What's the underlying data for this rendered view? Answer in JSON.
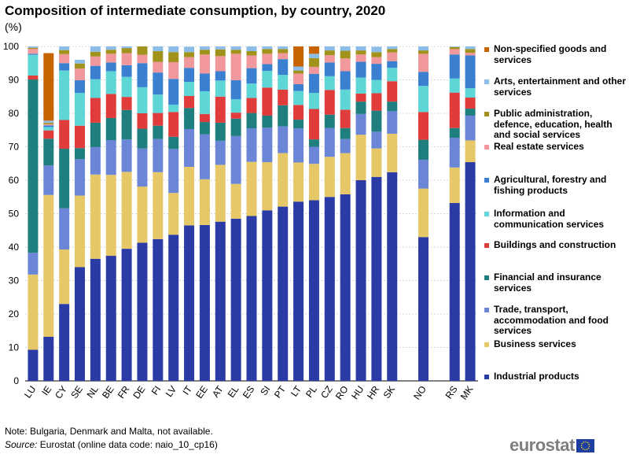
{
  "title": "Composition of intermediate consumption, by country, 2020",
  "unit": "(%)",
  "note": "Note: Bulgaria, Denmark and Malta, not available.",
  "source_label": "Source:",
  "source_text": " Eurostat (online data code: naio_10_cp16)",
  "logo_text": "eurostat",
  "chart_data": {
    "type": "bar",
    "stacked": true,
    "title": "Composition of intermediate consumption, by country, 2020",
    "ylabel": "(%)",
    "ylim": [
      0,
      100
    ],
    "yticks": [
      0,
      10,
      20,
      30,
      40,
      50,
      60,
      70,
      80,
      90,
      100
    ],
    "categories": [
      "LU",
      "IE",
      "CY",
      "SE",
      "NL",
      "BE",
      "FR",
      "DE",
      "FI",
      "LV",
      "IT",
      "EE",
      "AT",
      "EL",
      "ES",
      "SI",
      "PT",
      "LT",
      "PL",
      "CZ",
      "RO",
      "HU",
      "HR",
      "SK",
      "",
      "NO",
      "",
      "RS",
      "MK"
    ],
    "series": [
      {
        "name": "Industrial products",
        "color": "#2a3ba6",
        "values": [
          9.3,
          13.2,
          23.0,
          34.0,
          36.5,
          37.4,
          39.5,
          41.3,
          42.4,
          43.7,
          46.5,
          46.6,
          47.6,
          48.5,
          49.3,
          51.0,
          52.1,
          53.6,
          54.0,
          55.0,
          55.8,
          60.0,
          61.0,
          62.4,
          null,
          43.0,
          null,
          53.2,
          65.4
        ]
      },
      {
        "name": "Business services",
        "color": "#e6c868",
        "values": [
          22.5,
          42.4,
          16.3,
          21.4,
          25.2,
          24.2,
          23.0,
          16.8,
          20.0,
          12.5,
          17.5,
          13.7,
          17.0,
          10.4,
          16.2,
          14.4,
          16.0,
          11.7,
          10.9,
          12.0,
          12.3,
          13.6,
          8.5,
          11.5,
          null,
          14.5,
          null,
          10.6,
          6.5
        ]
      },
      {
        "name": "Trade, transport, accommodation and food services",
        "color": "#6b86d6",
        "values": [
          6.5,
          8.8,
          12.3,
          10.9,
          8.2,
          10.4,
          9.7,
          11.4,
          9.9,
          13.2,
          11.3,
          13.4,
          7.2,
          14.3,
          10.0,
          10.3,
          8.0,
          10.2,
          5.1,
          8.6,
          4.2,
          6.2,
          5.0,
          6.8,
          null,
          8.6,
          null,
          8.9,
          7.4
        ]
      },
      {
        "name": "Financial and insurance services",
        "color": "#1f7e7e",
        "values": [
          51.8,
          8.0,
          17.8,
          3.3,
          7.3,
          6.6,
          8.8,
          5.9,
          4.0,
          3.6,
          6.3,
          3.7,
          5.4,
          5.2,
          4.6,
          3.6,
          6.3,
          2.6,
          2.2,
          4.0,
          3.3,
          3.7,
          6.3,
          2.8,
          null,
          6.0,
          null,
          2.9,
          2.1
        ]
      },
      {
        "name": "Buildings and construction",
        "color": "#e03c3c",
        "values": [
          1.2,
          2.5,
          8.6,
          6.7,
          7.4,
          7.2,
          3.9,
          4.6,
          3.8,
          7.4,
          3.6,
          2.4,
          7.8,
          1.8,
          4.5,
          8.4,
          4.7,
          4.4,
          9.1,
          7.4,
          5.5,
          2.4,
          5.2,
          6.1,
          null,
          8.3,
          null,
          10.6,
          3.3
        ]
      },
      {
        "name": "Information and communication services",
        "color": "#5ed6d6",
        "values": [
          6.2,
          1.0,
          14.8,
          9.8,
          5.6,
          6.8,
          6.0,
          7.8,
          5.5,
          2.2,
          4.2,
          6.8,
          4.8,
          4.0,
          4.3,
          5.0,
          4.4,
          4.2,
          4.8,
          4.1,
          6.0,
          4.8,
          4.0,
          4.0,
          null,
          7.8,
          null,
          4.2,
          2.8
        ]
      },
      {
        "name": "Agricultural, forestry and fishing products",
        "color": "#3a7fd0",
        "values": [
          0.3,
          0.5,
          2.2,
          3.8,
          4.0,
          2.6,
          3.5,
          7.2,
          6.6,
          7.7,
          4.2,
          5.3,
          2.8,
          5.7,
          4.6,
          2.0,
          4.7,
          2.0,
          5.7,
          4.1,
          5.5,
          4.7,
          4.8,
          2.0,
          null,
          4.2,
          null,
          7.2,
          9.8
        ]
      },
      {
        "name": "Real estate services",
        "color": "#f0989b",
        "values": [
          1.5,
          0.4,
          2.7,
          3.5,
          2.8,
          2.6,
          3.6,
          2.5,
          3.2,
          5.0,
          3.2,
          5.7,
          4.5,
          7.9,
          3.8,
          3.1,
          1.8,
          3.2,
          2.1,
          2.2,
          3.8,
          2.2,
          2.0,
          2.6,
          null,
          5.4,
          null,
          1.6,
          0.8
        ]
      },
      {
        "name": "Public administration, defence, education, health and social services",
        "color": "#a0921a",
        "values": [
          0.3,
          0.4,
          1.2,
          1.5,
          1.4,
          1.2,
          1.5,
          2.7,
          3.2,
          3.0,
          1.5,
          1.4,
          2.0,
          1.2,
          1.3,
          1.4,
          1.2,
          0.9,
          2.6,
          1.4,
          2.3,
          1.2,
          1.5,
          1.0,
          null,
          1.0,
          null,
          0.6,
          1.1
        ]
      },
      {
        "name": "Arts, entertainment and other services",
        "color": "#8bbde8",
        "values": [
          0.4,
          0.6,
          1.1,
          1.1,
          1.6,
          1.0,
          0.5,
          0.8,
          1.4,
          1.7,
          1.6,
          1.0,
          0.9,
          1.0,
          1.4,
          0.8,
          0.8,
          1.2,
          1.3,
          1.2,
          1.3,
          1.2,
          1.6,
          0.8,
          null,
          1.2,
          null,
          0.6,
          0.8
        ]
      },
      {
        "name": "Non-specified goods and services",
        "color": "#c86400",
        "values": [
          0.0,
          20.2,
          0.0,
          0.0,
          0.0,
          0.0,
          0.0,
          0.0,
          0.0,
          0.0,
          0.0,
          0.0,
          0.0,
          0.0,
          0.0,
          0.0,
          0.0,
          6.0,
          2.2,
          0.0,
          0.0,
          0.0,
          0.0,
          0.0,
          null,
          0.0,
          null,
          0.0,
          0.0
        ]
      }
    ],
    "legend": [
      "Non-specified goods and services",
      "Arts, entertainment and other services",
      "Public administration, defence, education, health and social services",
      "Real estate services",
      "Agricultural, forestry and fishing products",
      "Information and communication services",
      "Buildings and construction",
      "Financial and insurance services",
      "Trade, transport, accommodation and food services",
      "Business services",
      "Industrial products"
    ],
    "legend_placement": "right"
  }
}
